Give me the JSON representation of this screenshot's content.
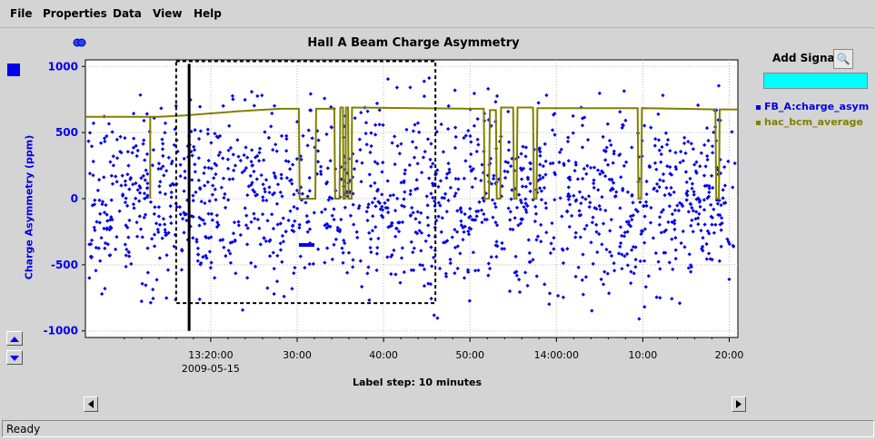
{
  "menu": [
    "File",
    "Properties",
    "Data",
    "View",
    "Help"
  ],
  "status": "Ready",
  "add_signal_label": "Add Signal",
  "label_step": "Label step: 10 minutes",
  "colors": {
    "series1": "#0000ee",
    "series2": "#808000",
    "signal_input": "#00ffff"
  },
  "chart_data": {
    "type": "scatter",
    "title": "Hall A Beam Charge Asymmetry",
    "ylabel": "Charge Asymmetry (ppm)",
    "ylim": [
      -1050,
      1050
    ],
    "yticks": [
      1000,
      500,
      0,
      -500,
      -1000
    ],
    "xtick_labels": [
      "13:20:00",
      "30:00",
      "40:00",
      "50:00",
      "14:00:00",
      "10:00",
      "20:00"
    ],
    "x_date_label": "2009-05-15",
    "grid": true,
    "legend_position": "right",
    "series": [
      {
        "name": "FB_A:charge_asym",
        "marker": "square",
        "color": "#0000ee",
        "points": "scatter of ~1500 points spread uniformly in time with values roughly between -1000 and 1000 ppm"
      },
      {
        "name": "hac_bcm_average",
        "marker": "line",
        "color": "#808000",
        "segments": [
          {
            "t": "13:08:00",
            "v": 620
          },
          {
            "t": "13:13:00",
            "v": 620
          },
          {
            "t": "13:19:00",
            "v": 640
          },
          {
            "t": "13:27:00",
            "v": 670
          },
          {
            "t": "13:30:00",
            "v": 680
          },
          {
            "t": "13:30:30",
            "v": 0
          },
          {
            "t": "13:32:00",
            "v": 0
          },
          {
            "t": "13:32:30",
            "v": 680
          },
          {
            "t": "13:37:00",
            "v": 690
          },
          {
            "t": "13:50:00",
            "v": 680
          },
          {
            "t": "13:56:30",
            "v": 0
          },
          {
            "t": "13:57:00",
            "v": 690
          },
          {
            "t": "14:00:00",
            "v": 690
          },
          {
            "t": "14:10:00",
            "v": 685
          },
          {
            "t": "14:20:00",
            "v": 680
          }
        ]
      }
    ],
    "selection_box": {
      "x_from": "13:16:00",
      "x_to": "13:46:00",
      "y_from": -790,
      "y_to": 1040
    },
    "cursor_line": {
      "x": "13:17:30"
    }
  }
}
